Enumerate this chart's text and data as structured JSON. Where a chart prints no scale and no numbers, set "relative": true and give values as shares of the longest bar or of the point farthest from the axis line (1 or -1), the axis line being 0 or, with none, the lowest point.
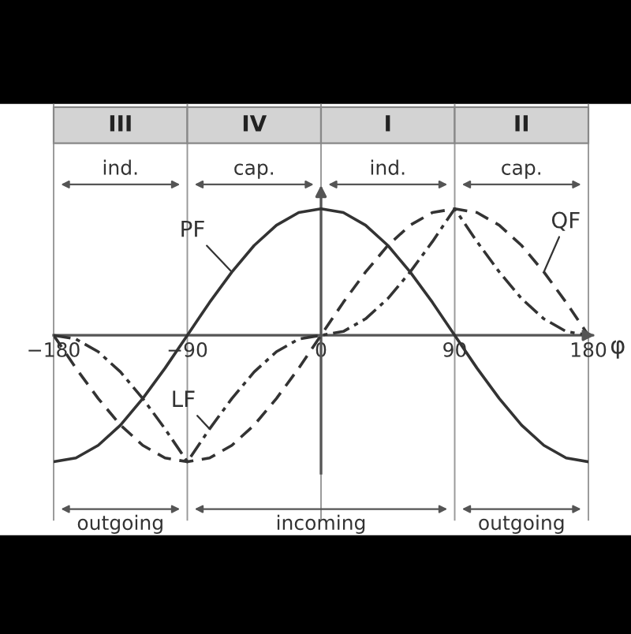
{
  "chart_data": {
    "type": "line",
    "relative": true,
    "xlabel": "φ",
    "x": [
      -180,
      -165,
      -150,
      -135,
      -120,
      -105,
      -90,
      -75,
      -60,
      -45,
      -30,
      -15,
      0,
      15,
      30,
      45,
      60,
      75,
      90,
      105,
      120,
      135,
      150,
      165,
      180
    ],
    "xlim": [
      -180,
      180
    ],
    "xticks": [
      {
        "value": -180,
        "label": "−180"
      },
      {
        "value": -90,
        "label": "−90"
      },
      0,
      90,
      180
    ],
    "grid": "x",
    "tick_labels": "x",
    "series": [
      {
        "name": "PF",
        "color": "#333333",
        "line_style": "solid",
        "values": [
          -1,
          -0.97,
          -0.87,
          -0.71,
          -0.5,
          -0.26,
          0,
          0.26,
          0.5,
          0.71,
          0.87,
          0.97,
          1,
          0.97,
          0.87,
          0.71,
          0.5,
          0.26,
          0,
          -0.26,
          -0.5,
          -0.71,
          -0.87,
          -0.97,
          -1
        ]
      },
      {
        "name": "QF",
        "color": "#333333",
        "line_style": "dashed",
        "values": [
          0,
          -0.26,
          -0.5,
          -0.71,
          -0.87,
          -0.97,
          -1,
          -0.97,
          -0.87,
          -0.71,
          -0.5,
          -0.26,
          0,
          0.26,
          0.5,
          0.71,
          0.87,
          0.97,
          1,
          0.97,
          0.87,
          0.71,
          0.5,
          0.26,
          0
        ]
      },
      {
        "name": "LF",
        "color": "#333333",
        "line_style": "dashdot",
        "values": [
          0,
          -0.03,
          -0.13,
          -0.29,
          -0.5,
          -0.74,
          -1,
          -0.74,
          -0.5,
          -0.29,
          -0.13,
          -0.03,
          0,
          0.03,
          0.13,
          0.29,
          0.5,
          0.74,
          1,
          0.74,
          0.5,
          0.29,
          0.13,
          0.03,
          0
        ]
      }
    ],
    "annotations": [
      "III",
      "IV",
      "I",
      "II",
      "ind.",
      "cap.",
      "ind.",
      "cap.",
      "outgoing",
      "incoming",
      "outgoing"
    ]
  }
}
